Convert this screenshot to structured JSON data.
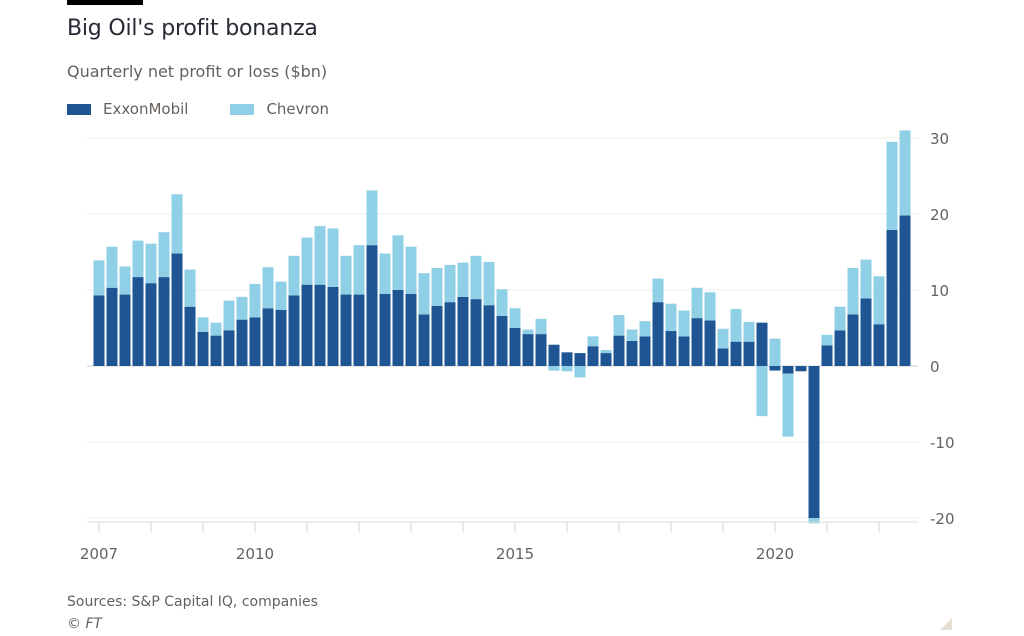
{
  "header": {
    "title": "Big Oil's profit bonanza",
    "subtitle": "Quarterly net profit or loss ($bn)"
  },
  "legend": [
    {
      "label": "ExxonMobil",
      "color": "#1f5593"
    },
    {
      "label": "Chevron",
      "color": "#8fd0e6"
    }
  ],
  "footer": {
    "source": "Sources: S&P Capital IQ, companies",
    "copyright": "© FT"
  },
  "chart_data": {
    "type": "bar",
    "stacked": true,
    "title": "Big Oil's profit bonanza",
    "subtitle": "Quarterly net profit or loss ($bn)",
    "xlabel": "",
    "ylabel": "",
    "ylim": [
      -20,
      30
    ],
    "yticks": [
      30,
      20,
      10,
      0,
      -10,
      -20
    ],
    "ytick_labels": [
      "30",
      "20",
      "10",
      "0",
      "-10",
      "-20"
    ],
    "y_axis_position": "right",
    "grid": true,
    "legend_position": "top-left",
    "x_start": "2007Q1",
    "x_end": "2022Q3",
    "xtick_labels": [
      {
        "label": "2007",
        "quarter_index": 0
      },
      {
        "label": "2010",
        "quarter_index": 12
      },
      {
        "label": "2015",
        "quarter_index": 32
      },
      {
        "label": "2020",
        "quarter_index": 52
      }
    ],
    "year_ticks": [
      2007,
      2008,
      2009,
      2010,
      2011,
      2012,
      2013,
      2014,
      2015,
      2016,
      2017,
      2018,
      2019,
      2020,
      2021,
      2022
    ],
    "categories": [
      "2007Q1",
      "2007Q2",
      "2007Q3",
      "2007Q4",
      "2008Q1",
      "2008Q2",
      "2008Q3",
      "2008Q4",
      "2009Q1",
      "2009Q2",
      "2009Q3",
      "2009Q4",
      "2010Q1",
      "2010Q2",
      "2010Q3",
      "2010Q4",
      "2011Q1",
      "2011Q2",
      "2011Q3",
      "2011Q4",
      "2012Q1",
      "2012Q2",
      "2012Q3",
      "2012Q4",
      "2013Q1",
      "2013Q2",
      "2013Q3",
      "2013Q4",
      "2014Q1",
      "2014Q2",
      "2014Q3",
      "2014Q4",
      "2015Q1",
      "2015Q2",
      "2015Q3",
      "2015Q4",
      "2016Q1",
      "2016Q2",
      "2016Q3",
      "2016Q4",
      "2017Q1",
      "2017Q2",
      "2017Q3",
      "2017Q4",
      "2018Q1",
      "2018Q2",
      "2018Q3",
      "2018Q4",
      "2019Q1",
      "2019Q2",
      "2019Q3",
      "2019Q4",
      "2020Q1",
      "2020Q2",
      "2020Q3",
      "2020Q4",
      "2021Q1",
      "2021Q2",
      "2021Q3",
      "2021Q4",
      "2022Q1",
      "2022Q2",
      "2022Q3"
    ],
    "series": [
      {
        "name": "ExxonMobil",
        "color": "#1f5593",
        "values": [
          9.3,
          10.3,
          9.4,
          11.7,
          10.9,
          11.7,
          14.8,
          7.8,
          4.5,
          4.0,
          4.7,
          6.1,
          6.4,
          7.6,
          7.4,
          9.3,
          10.7,
          10.7,
          10.4,
          9.4,
          9.4,
          15.9,
          9.5,
          10.0,
          9.5,
          6.8,
          7.9,
          8.4,
          9.1,
          8.8,
          8.0,
          6.6,
          5.0,
          4.2,
          4.2,
          2.8,
          1.8,
          1.7,
          2.6,
          1.7,
          4.0,
          3.3,
          3.9,
          8.4,
          4.6,
          3.9,
          6.3,
          6.0,
          2.3,
          3.2,
          3.2,
          5.7,
          -0.6,
          -1.0,
          -0.7,
          -20.0,
          2.7,
          4.7,
          6.8,
          8.9,
          5.5,
          17.9,
          19.8
        ]
      },
      {
        "name": "Chevron",
        "color": "#8fd0e6",
        "values": [
          4.6,
          5.4,
          3.7,
          4.8,
          5.2,
          5.9,
          7.8,
          4.9,
          1.9,
          1.7,
          3.9,
          3.0,
          4.4,
          5.4,
          3.7,
          5.2,
          6.2,
          7.7,
          7.7,
          5.1,
          6.5,
          7.2,
          5.3,
          7.2,
          6.2,
          5.4,
          5.0,
          4.9,
          4.5,
          5.7,
          5.7,
          3.5,
          2.6,
          0.6,
          2.0,
          -0.6,
          -0.7,
          -1.5,
          1.3,
          0.4,
          2.7,
          1.5,
          2.0,
          3.1,
          3.6,
          3.4,
          4.0,
          3.7,
          2.6,
          4.3,
          2.6,
          -6.6,
          3.6,
          -8.3,
          0.0,
          -0.7,
          1.4,
          3.1,
          6.1,
          5.1,
          6.3,
          11.6,
          11.2
        ]
      }
    ]
  }
}
